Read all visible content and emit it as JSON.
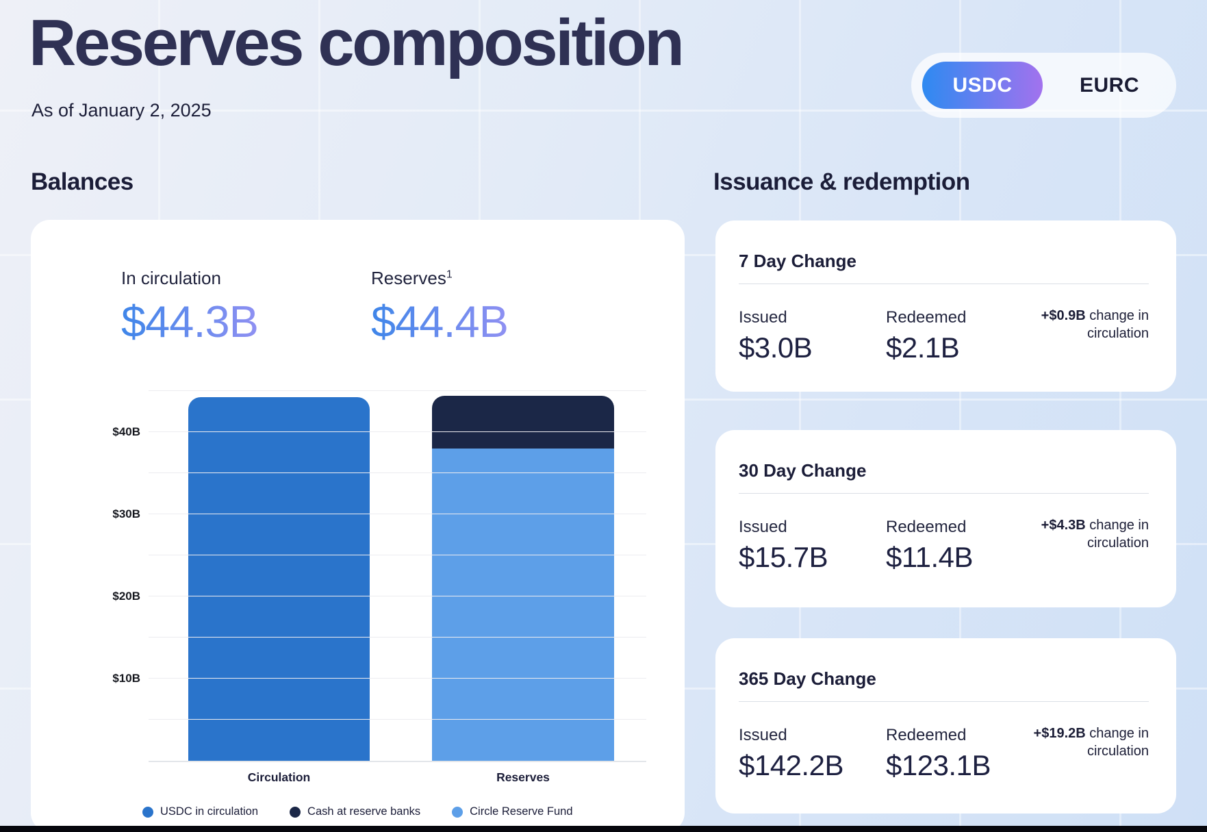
{
  "page": {
    "title": "Reserves composition",
    "as_of": "As of January 2, 2025"
  },
  "toggle": {
    "selected": "USDC",
    "options": [
      {
        "label": "USDC"
      },
      {
        "label": "EURC"
      }
    ]
  },
  "balances": {
    "heading": "Balances",
    "stats": [
      {
        "label": "In circulation",
        "value": "$44.3B"
      },
      {
        "label": "Reserves",
        "footnote": "1",
        "value": "$44.4B"
      }
    ]
  },
  "issuance": {
    "heading": "Issuance & redemption",
    "cards": [
      {
        "title": "7 Day Change",
        "issued_label": "Issued",
        "issued_value": "$3.0B",
        "redeemed_label": "Redeemed",
        "redeemed_value": "$2.1B",
        "change_amount": "+$0.9B",
        "change_text": " change in circulation"
      },
      {
        "title": "30 Day Change",
        "issued_label": "Issued",
        "issued_value": "$15.7B",
        "redeemed_label": "Redeemed",
        "redeemed_value": "$11.4B",
        "change_amount": "+$4.3B",
        "change_text": " change in circulation"
      },
      {
        "title": "365 Day Change",
        "issued_label": "Issued",
        "issued_value": "$142.2B",
        "redeemed_label": "Redeemed",
        "redeemed_value": "$123.1B",
        "change_amount": "+$19.2B",
        "change_text": " change in circulation"
      }
    ]
  },
  "chart_data": {
    "type": "bar",
    "stacked": true,
    "unit": "USD billions",
    "title": "",
    "xlabel": "",
    "ylabel": "",
    "categories": [
      "Circulation",
      "Reserves"
    ],
    "series": [
      {
        "name": "USDC in circulation",
        "color": "#2a74cb",
        "values": [
          44.3,
          0
        ]
      },
      {
        "name": "Cash at reserve banks",
        "color": "#1b2747",
        "values": [
          0,
          6.4
        ]
      },
      {
        "name": "Circle Reserve Fund",
        "color": "#5d9fe8",
        "values": [
          0,
          38.0
        ]
      }
    ],
    "totals": [
      44.3,
      44.4
    ],
    "ylim": [
      0,
      47.6
    ],
    "yticks": [
      {
        "value": 10,
        "label": "$10B"
      },
      {
        "value": 20,
        "label": "$20B"
      },
      {
        "value": 30,
        "label": "$30B"
      },
      {
        "value": 40,
        "label": "$40B"
      }
    ],
    "minor_gridlines": [
      5,
      15,
      25,
      35,
      45
    ],
    "grid": true,
    "legend_position": "bottom"
  },
  "colors": {
    "accent_gradient_start": "#2e8af1",
    "accent_gradient_end": "#a272ee",
    "value_gradient_start": "#3f86e9",
    "value_gradient_end": "#8f90f2",
    "dark_navy_text": "#1b1d38",
    "footer_strip": "#06070d"
  }
}
